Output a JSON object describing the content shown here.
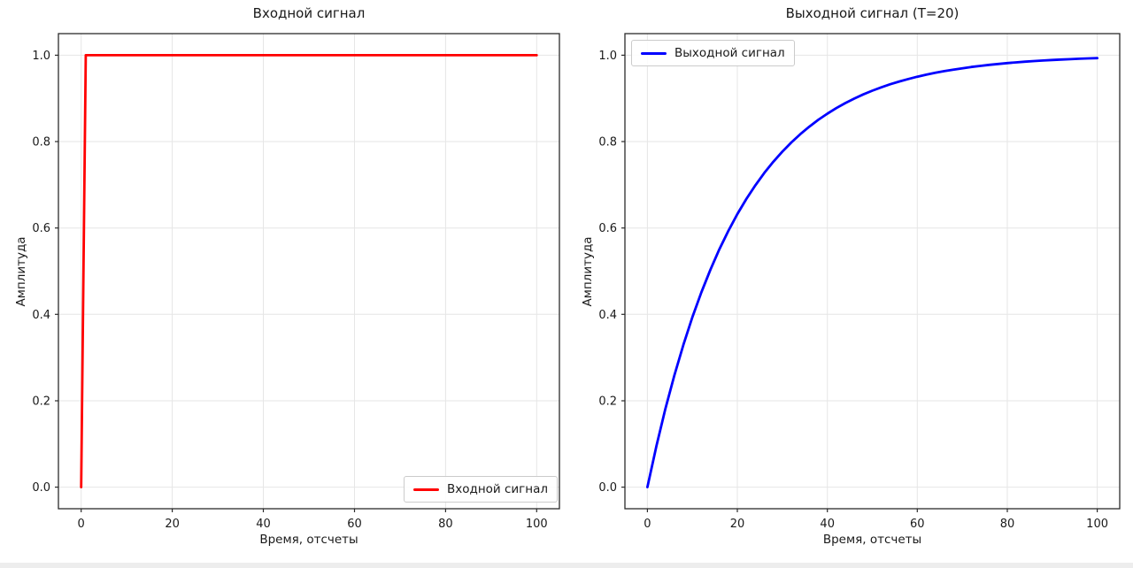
{
  "chart_data": [
    {
      "type": "line",
      "title": "Входной сигнал",
      "xlabel": "Время, отсчеты",
      "ylabel": "Амплитуда",
      "xlim": [
        -5,
        105
      ],
      "ylim": [
        -0.05,
        1.05
      ],
      "xticks": [
        0,
        20,
        40,
        60,
        80,
        100
      ],
      "ytick_labels": [
        "0.0",
        "0.2",
        "0.4",
        "0.6",
        "0.8",
        "1.0"
      ],
      "grid": true,
      "legend": {
        "label": "Входной сигнал",
        "position": "lower right"
      },
      "series": [
        {
          "name": "Входной сигнал",
          "color": "#ff0000",
          "x": [
            0,
            1,
            100
          ],
          "y": [
            0,
            1,
            1
          ]
        }
      ]
    },
    {
      "type": "line",
      "title": "Выходной сигнал (T=20)",
      "xlabel": "Время, отсчеты",
      "ylabel": "Амплитуда",
      "xlim": [
        -5,
        105
      ],
      "ylim": [
        -0.05,
        1.05
      ],
      "xticks": [
        0,
        20,
        40,
        60,
        80,
        100
      ],
      "ytick_labels": [
        "0.0",
        "0.2",
        "0.4",
        "0.6",
        "0.8",
        "1.0"
      ],
      "grid": true,
      "legend": {
        "label": "Выходной сигнал",
        "position": "upper left"
      },
      "time_constant": "T=20",
      "series": [
        {
          "name": "Выходной сигнал",
          "color": "#0000ff",
          "x": [
            0,
            2,
            4,
            6,
            8,
            10,
            12,
            14,
            16,
            18,
            20,
            22,
            24,
            26,
            28,
            30,
            32,
            34,
            36,
            38,
            40,
            42,
            44,
            46,
            48,
            50,
            52,
            54,
            56,
            58,
            60,
            62,
            64,
            66,
            68,
            70,
            72,
            74,
            76,
            78,
            80,
            82,
            84,
            86,
            88,
            90,
            92,
            94,
            96,
            98,
            100
          ],
          "y": [
            0,
            0.0952,
            0.1813,
            0.2592,
            0.3297,
            0.3935,
            0.4512,
            0.5034,
            0.5507,
            0.5934,
            0.6321,
            0.6671,
            0.6988,
            0.7275,
            0.7534,
            0.7769,
            0.7981,
            0.8173,
            0.8347,
            0.8504,
            0.8647,
            0.8775,
            0.8892,
            0.8997,
            0.9093,
            0.9179,
            0.9257,
            0.9328,
            0.9392,
            0.945,
            0.9502,
            0.955,
            0.9592,
            0.9631,
            0.9666,
            0.9698,
            0.9727,
            0.9753,
            0.9776,
            0.9798,
            0.9817,
            0.9834,
            0.985,
            0.9864,
            0.9877,
            0.9889,
            0.9899,
            0.9909,
            0.9918,
            0.9926,
            0.9933
          ]
        }
      ]
    }
  ]
}
